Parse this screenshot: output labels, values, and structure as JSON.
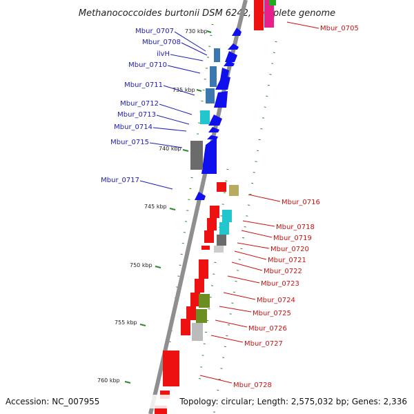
{
  "title": "Methanococcoides burtonii DSM 6242, complete genome",
  "footer": {
    "accession": "Accession: NC_007955",
    "summary": "Topology: circular; Length: 2,575,032 bp; Genes: 2,336"
  },
  "colors": {
    "backbone": "#8f8f8f",
    "ticks": "#2a8a2a",
    "forward_label": "#1b1bb8",
    "reverse_label": "#cc1111",
    "blue": "#1010ee",
    "steel": "#3b78b0",
    "red": "#ee1111",
    "pink": "#e8208a",
    "cyan": "#22c6cc",
    "tan": "#b8aa60",
    "gray": "#6b6b6b",
    "olive": "#6b8e23",
    "green": "#22aa22"
  },
  "scale_labels": [
    "730 kbp",
    "735 kbp",
    "740 kbp",
    "745 kbp",
    "750 kbp",
    "755 kbp",
    "760 kbp"
  ],
  "forward_genes": [
    "Mbur_0707",
    "Mbur_0708",
    "ilvH",
    "Mbur_0710",
    "Mbur_0711",
    "Mbur_0712",
    "Mbur_0713",
    "Mbur_0714",
    "Mbur_0715",
    "Mbur_0717"
  ],
  "reverse_genes": [
    "Mbur_0705",
    "Mbur_0716",
    "Mbur_0718",
    "Mbur_0719",
    "Mbur_0720",
    "Mbur_0721",
    "Mbur_0722",
    "Mbur_0723",
    "Mbur_0724",
    "Mbur_0725",
    "Mbur_0726",
    "Mbur_0727",
    "Mbur_0728"
  ]
}
